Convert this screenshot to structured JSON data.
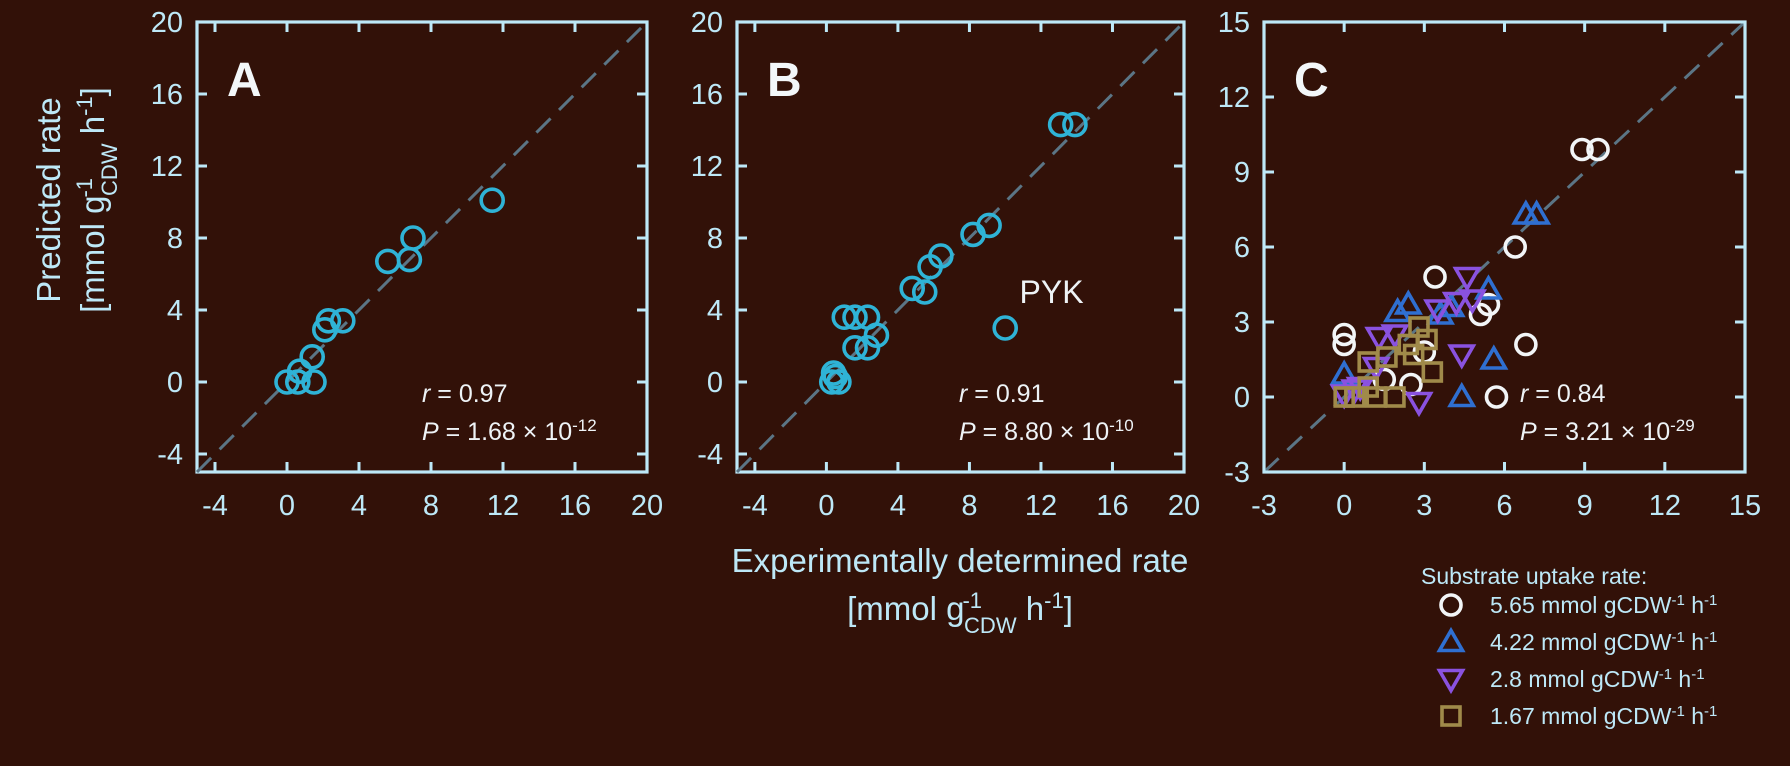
{
  "colors": {
    "background": "#321108",
    "axis": "#bde8f7",
    "cyan": "#2fb3d6",
    "white": "#f2f5f7",
    "blue": "#2f6fd1",
    "purple": "#8a52e0",
    "olive": "#a08a4a",
    "diagonal": "#5b7585"
  },
  "y_label": {
    "line1": "Predicted rate",
    "line2_pre": "[mmol g",
    "line2_sup": "-1",
    "line2_sub": "CDW",
    "line2_unit": " h",
    "line2_unit_sup": "-1",
    "line2_end": "]"
  },
  "x_label": {
    "line1": "Experimentally determined rate",
    "line2_pre": "[mmol g",
    "line2_sup": "-1",
    "line2_sub": "CDW",
    "line2_unit": " h",
    "line2_unit_sup": "-1",
    "line2_end": "]"
  },
  "legend": {
    "title": "Substrate uptake rate:",
    "entries": [
      {
        "marker": "circle",
        "color": "#f2f5f7",
        "value": "5.65 mmol gCDW",
        "sup1": "-1",
        "unit": " h",
        "sup2": "-1"
      },
      {
        "marker": "triangle-up",
        "color": "#2f6fd1",
        "value": "4.22 mmol gCDW",
        "sup1": "-1",
        "unit": " h",
        "sup2": "-1"
      },
      {
        "marker": "triangle-down",
        "color": "#8a52e0",
        "value": "2.8 mmol gCDW",
        "sup1": "-1",
        "unit": " h",
        "sup2": "-1"
      },
      {
        "marker": "square",
        "color": "#a08a4a",
        "value": "1.67 mmol gCDW",
        "sup1": "-1",
        "unit": " h",
        "sup2": "-1"
      }
    ]
  },
  "chart_data": [
    {
      "type": "scatter",
      "panel": "A",
      "xlim": [
        -5,
        20
      ],
      "ylim": [
        -5,
        20
      ],
      "xticks": [
        -4,
        0,
        4,
        8,
        12,
        16,
        20
      ],
      "yticks": [
        -4,
        0,
        4,
        8,
        12,
        16,
        20
      ],
      "tick_labels": [
        "-4",
        "0",
        "4",
        "8",
        "12",
        "16",
        "20"
      ],
      "identity_line": true,
      "stats": {
        "r_label": "r",
        "r_value": " = 0.97",
        "p_label": "P",
        "p_value": " = 1.68 × 10",
        "p_exp": "-12"
      },
      "series": [
        {
          "marker": "circle",
          "color": "#2fb3d6",
          "points": [
            [
              0,
              0
            ],
            [
              0.6,
              0
            ],
            [
              1.5,
              0
            ],
            [
              0.7,
              0.6
            ],
            [
              1.4,
              1.4
            ],
            [
              2.1,
              2.9
            ],
            [
              2.3,
              3.4
            ],
            [
              3.1,
              3.4
            ],
            [
              5.6,
              6.7
            ],
            [
              6.8,
              6.8
            ],
            [
              7.0,
              8.0
            ],
            [
              11.4,
              10.1
            ]
          ]
        }
      ]
    },
    {
      "type": "scatter",
      "panel": "B",
      "xlim": [
        -5,
        20
      ],
      "ylim": [
        -5,
        20
      ],
      "xticks": [
        -4,
        0,
        4,
        8,
        12,
        16,
        20
      ],
      "yticks": [
        -4,
        0,
        4,
        8,
        12,
        16,
        20
      ],
      "tick_labels": [
        "-4",
        "0",
        "4",
        "8",
        "12",
        "16",
        "20"
      ],
      "identity_line": true,
      "annotation": {
        "text": "PYK",
        "x": 10.8,
        "y": 4.4
      },
      "stats": {
        "r_label": "r",
        "r_value": " = 0.91",
        "p_label": "P",
        "p_value": " = 8.80 × 10",
        "p_exp": "-10"
      },
      "series": [
        {
          "marker": "circle",
          "color": "#2fb3d6",
          "points": [
            [
              0.3,
              0
            ],
            [
              0.5,
              0.3
            ],
            [
              0.7,
              0
            ],
            [
              0.4,
              0.5
            ],
            [
              1.0,
              3.6
            ],
            [
              1.6,
              3.6
            ],
            [
              2.3,
              3.6
            ],
            [
              1.6,
              1.9
            ],
            [
              2.3,
              1.9
            ],
            [
              2.8,
              2.6
            ],
            [
              4.8,
              5.2
            ],
            [
              5.5,
              5.0
            ],
            [
              5.8,
              6.4
            ],
            [
              6.4,
              7.0
            ],
            [
              8.2,
              8.2
            ],
            [
              9.1,
              8.7
            ],
            [
              10.0,
              3.0
            ],
            [
              13.1,
              14.3
            ],
            [
              13.9,
              14.3
            ]
          ]
        }
      ]
    },
    {
      "type": "scatter",
      "panel": "C",
      "xlim": [
        -3,
        15
      ],
      "ylim": [
        -3,
        15
      ],
      "xticks": [
        -3,
        0,
        3,
        6,
        9,
        12,
        15
      ],
      "yticks": [
        -3,
        0,
        3,
        6,
        9,
        12,
        15
      ],
      "tick_labels": [
        "-3",
        "0",
        "3",
        "6",
        "9",
        "12",
        "15"
      ],
      "identity_line": true,
      "stats": {
        "r_label": "r",
        "r_value": " = 0.84",
        "p_label": "P",
        "p_value": " = 3.21 × 10",
        "p_exp": "-29"
      },
      "series": [
        {
          "name": "5.65 mmol gCDW-1 h-1",
          "marker": "circle",
          "color": "#f2f5f7",
          "points": [
            [
              0,
              2.5
            ],
            [
              0,
              2.1
            ],
            [
              1.5,
              0.7
            ],
            [
              2.5,
              0.5
            ],
            [
              3.0,
              1.8
            ],
            [
              3.4,
              4.8
            ],
            [
              5.1,
              3.3
            ],
            [
              5.4,
              3.7
            ],
            [
              5.7,
              0
            ],
            [
              6.4,
              6.0
            ],
            [
              6.8,
              2.1
            ],
            [
              8.9,
              9.9
            ],
            [
              9.5,
              9.9
            ]
          ]
        },
        {
          "name": "4.22 mmol gCDW-1 h-1",
          "marker": "triangle-up",
          "color": "#2f6fd1",
          "points": [
            [
              0,
              0.9
            ],
            [
              2.0,
              3.4
            ],
            [
              2.4,
              3.7
            ],
            [
              3.6,
              3.3
            ],
            [
              4.0,
              3.6
            ],
            [
              4.4,
              0
            ],
            [
              5.4,
              4.3
            ],
            [
              5.6,
              1.5
            ],
            [
              6.8,
              7.3
            ],
            [
              7.2,
              7.3
            ]
          ]
        },
        {
          "name": "2.8 mmol gCDW-1 h-1",
          "marker": "triangle-down",
          "color": "#8a52e0",
          "points": [
            [
              0,
              0.1
            ],
            [
              0.4,
              0.3
            ],
            [
              0.6,
              0.4
            ],
            [
              1.2,
              1.2
            ],
            [
              1.3,
              2.4
            ],
            [
              1.9,
              2.5
            ],
            [
              2.8,
              -0.2
            ],
            [
              3.5,
              3.5
            ],
            [
              4.2,
              3.8
            ],
            [
              4.4,
              1.7
            ],
            [
              4.6,
              4.8
            ],
            [
              4.8,
              3.9
            ]
          ]
        },
        {
          "name": "1.67 mmol gCDW-1 h-1",
          "marker": "square",
          "color": "#a08a4a",
          "points": [
            [
              0,
              0
            ],
            [
              0.4,
              0
            ],
            [
              0.9,
              0.4
            ],
            [
              0.9,
              1.4
            ],
            [
              1.2,
              0
            ],
            [
              1.6,
              1.6
            ],
            [
              1.9,
              0
            ],
            [
              2.4,
              2.1
            ],
            [
              2.6,
              1.7
            ],
            [
              2.8,
              2.8
            ],
            [
              3.1,
              2.3
            ],
            [
              3.3,
              1.0
            ]
          ]
        }
      ]
    }
  ]
}
